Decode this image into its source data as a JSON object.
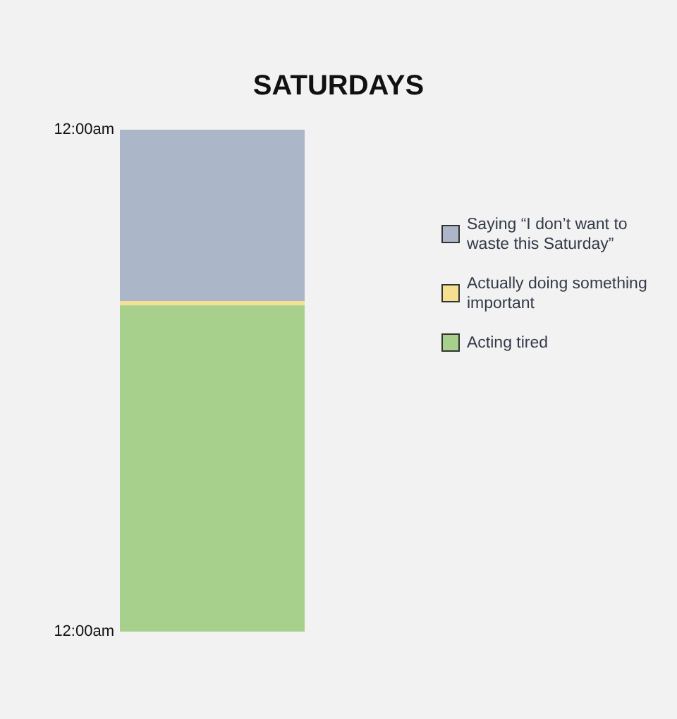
{
  "chart_data": {
    "type": "bar",
    "title": "SATURDAYS",
    "categories": [
      null
    ],
    "stacked": true,
    "series": [
      {
        "name": "Saying “I don’t want to waste this Saturday”",
        "color": "#abb6c8",
        "values": [
          8.2
        ]
      },
      {
        "name": "Actually doing something important",
        "color": "#f5e08f",
        "values": [
          0.2
        ]
      },
      {
        "name": "Acting tired",
        "color": "#a8d08d",
        "values": [
          15.6
        ]
      }
    ],
    "ylim": [
      24,
      0
    ],
    "yticks": [
      {
        "value": 0,
        "label": "12:00am"
      },
      {
        "value": 24,
        "label": "12:00am"
      }
    ],
    "grid": false,
    "legend": "right"
  }
}
